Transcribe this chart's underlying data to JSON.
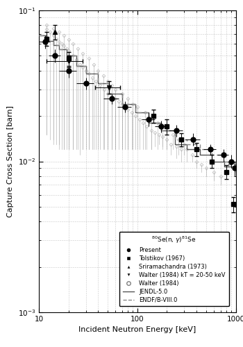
{
  "title": "$^{80}$Se(n, $\\gamma$)$^{81}$Se",
  "xlabel": "Incident Neutron Energy [keV]",
  "ylabel": "Capture Cross Section [barn]",
  "xlim": [
    10,
    1000
  ],
  "ylim": [
    0.001,
    0.1
  ],
  "present_data": {
    "x": [
      11.5,
      14.5,
      20,
      30,
      55,
      75,
      130,
      175,
      250,
      370,
      550,
      750,
      900,
      970
    ],
    "y": [
      0.062,
      0.05,
      0.04,
      0.033,
      0.026,
      0.023,
      0.019,
      0.017,
      0.016,
      0.014,
      0.012,
      0.011,
      0.01,
      0.009
    ],
    "yerr_low": [
      0.006,
      0.005,
      0.004,
      0.003,
      0.002,
      0.002,
      0.002,
      0.0015,
      0.0015,
      0.0013,
      0.001,
      0.001,
      0.001,
      0.001
    ],
    "yerr_high": [
      0.006,
      0.005,
      0.004,
      0.003,
      0.002,
      0.002,
      0.002,
      0.0015,
      0.0015,
      0.0013,
      0.001,
      0.001,
      0.001,
      0.001
    ],
    "xerr_low": [
      1.5,
      2,
      4,
      6,
      10,
      12,
      20,
      25,
      40,
      60,
      80,
      100,
      80,
      30
    ],
    "xerr_high": [
      1.5,
      2,
      4,
      6,
      10,
      12,
      20,
      25,
      40,
      60,
      80,
      100,
      80,
      30
    ]
  },
  "tolstikov_data": {
    "x": [
      12,
      20,
      145,
      200,
      280,
      400,
      575,
      800,
      950
    ],
    "y": [
      0.065,
      0.048,
      0.02,
      0.017,
      0.014,
      0.012,
      0.01,
      0.0085,
      0.0052
    ],
    "yerr": [
      0.007,
      0.005,
      0.002,
      0.002,
      0.0014,
      0.0012,
      0.001,
      0.0009,
      0.0006
    ]
  },
  "srirama_data": {
    "x": [
      14.5
    ],
    "y": [
      0.072
    ],
    "yerr": [
      0.008
    ]
  },
  "walter_kT_data": {
    "x": [
      20,
      52
    ],
    "y": [
      0.046,
      0.031
    ],
    "xerr_low": [
      8,
      15
    ],
    "xerr_high": [
      8,
      15
    ],
    "yerr": [
      0.004,
      0.003
    ]
  },
  "walter_diamond_x": [
    12,
    13,
    14,
    15,
    16,
    17,
    18,
    19,
    20,
    22,
    24,
    26,
    28,
    30,
    32,
    35,
    38,
    42,
    46,
    50,
    55,
    60,
    65,
    70,
    75,
    80,
    88,
    95,
    105,
    115,
    125,
    138,
    150,
    165,
    180,
    200,
    220,
    250,
    280,
    12,
    14,
    16,
    18,
    20,
    22,
    25,
    28,
    32,
    36,
    40,
    45,
    50,
    55,
    60,
    70,
    80,
    90,
    100,
    120,
    140,
    160,
    180,
    200,
    230,
    260,
    300,
    320,
    360,
    400,
    450,
    500,
    600,
    700
  ],
  "walter_diamond_y": [
    0.075,
    0.072,
    0.068,
    0.065,
    0.062,
    0.06,
    0.058,
    0.056,
    0.054,
    0.05,
    0.047,
    0.044,
    0.042,
    0.04,
    0.038,
    0.036,
    0.034,
    0.032,
    0.03,
    0.028,
    0.027,
    0.026,
    0.025,
    0.024,
    0.023,
    0.022,
    0.021,
    0.02,
    0.019,
    0.018,
    0.017,
    0.016,
    0.0155,
    0.015,
    0.0145,
    0.014,
    0.013,
    0.0125,
    0.012,
    0.08,
    0.076,
    0.072,
    0.068,
    0.064,
    0.06,
    0.056,
    0.052,
    0.048,
    0.044,
    0.04,
    0.037,
    0.034,
    0.032,
    0.03,
    0.028,
    0.026,
    0.024,
    0.023,
    0.021,
    0.019,
    0.018,
    0.017,
    0.016,
    0.015,
    0.014,
    0.013,
    0.012,
    0.011,
    0.01,
    0.0095,
    0.009,
    0.0085,
    0.008
  ],
  "walter_diamond_yerr_low": [
    0.06,
    0.058,
    0.055,
    0.052,
    0.05,
    0.048,
    0.046,
    0.044,
    0.042,
    0.038,
    0.035,
    0.033,
    0.03,
    0.028,
    0.026,
    0.024,
    0.022,
    0.02,
    0.018,
    0.016,
    0.015,
    0.014,
    0.013,
    0.012,
    0.011,
    0.01,
    0.009,
    0.008,
    0.007,
    0.006,
    0.005,
    0.004,
    0.003,
    0.002,
    0.002,
    0.002,
    0.002,
    0.002,
    0.002,
    0.065,
    0.062,
    0.059,
    0.056,
    0.052,
    0.048,
    0.044,
    0.04,
    0.036,
    0.032,
    0.028,
    0.025,
    0.022,
    0.02,
    0.018,
    0.016,
    0.014,
    0.012,
    0.011,
    0.009,
    0.007,
    0.006,
    0.005,
    0.004,
    0.003,
    0.003,
    0.002,
    0.002,
    0.001,
    0.001,
    0.001,
    0.001,
    0.001,
    0.001
  ],
  "jendl_x": [
    10,
    12,
    14,
    16,
    19,
    24,
    30,
    40,
    52,
    70,
    95,
    130,
    175,
    240,
    320,
    430,
    570,
    760,
    1000
  ],
  "jendl_y": [
    0.068,
    0.063,
    0.059,
    0.055,
    0.05,
    0.043,
    0.038,
    0.033,
    0.028,
    0.024,
    0.021,
    0.018,
    0.016,
    0.013,
    0.012,
    0.011,
    0.01,
    0.0092,
    0.0085
  ],
  "endfb_x": [
    10,
    12,
    14,
    16,
    19,
    24,
    30,
    40,
    52,
    70,
    95,
    130,
    175,
    240,
    320,
    430,
    570,
    760,
    850,
    1000
  ],
  "endfb_y": [
    0.068,
    0.063,
    0.059,
    0.055,
    0.05,
    0.043,
    0.038,
    0.033,
    0.028,
    0.024,
    0.021,
    0.018,
    0.016,
    0.014,
    0.013,
    0.012,
    0.011,
    0.01,
    0.0095,
    0.009
  ],
  "colors": {
    "present": "#000000",
    "tolstikov": "#000000",
    "srirama": "#000000",
    "walter_kT": "#000000",
    "walter_diamond": "#aaaaaa",
    "jendl": "#555555",
    "endfb": "#888888"
  }
}
